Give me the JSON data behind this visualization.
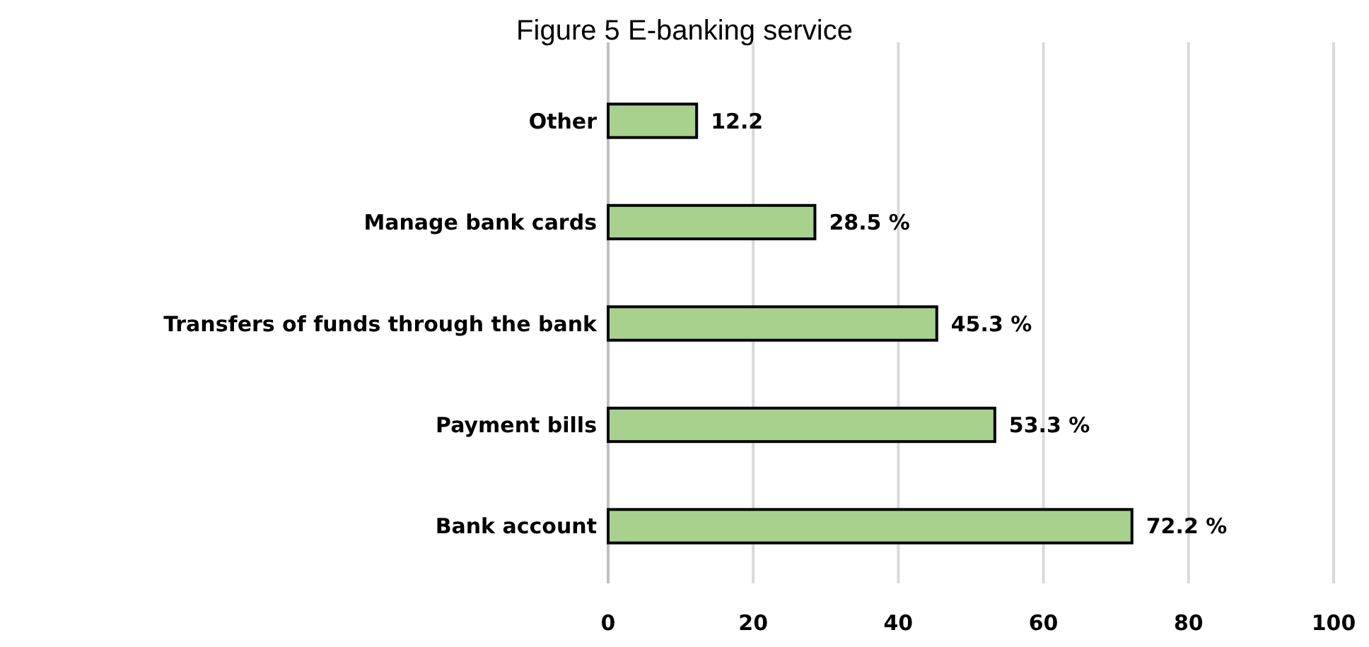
{
  "chart_data": {
    "type": "bar",
    "orientation": "horizontal",
    "title": "Figure 5 E-banking service",
    "categories": [
      "Other",
      "Manage bank cards",
      "Transfers of funds through the bank",
      "Payment bills",
      "Bank account"
    ],
    "values": [
      12.2,
      28.5,
      45.3,
      53.3,
      72.2
    ],
    "value_labels": [
      "12.2",
      "28.5 %",
      "45.3 %",
      "53.3 %",
      "72.2 %"
    ],
    "color": "#a9d18e",
    "xlim": [
      0,
      100
    ],
    "xticks": [
      0,
      20,
      40,
      60,
      80,
      100
    ],
    "grid": "x"
  }
}
